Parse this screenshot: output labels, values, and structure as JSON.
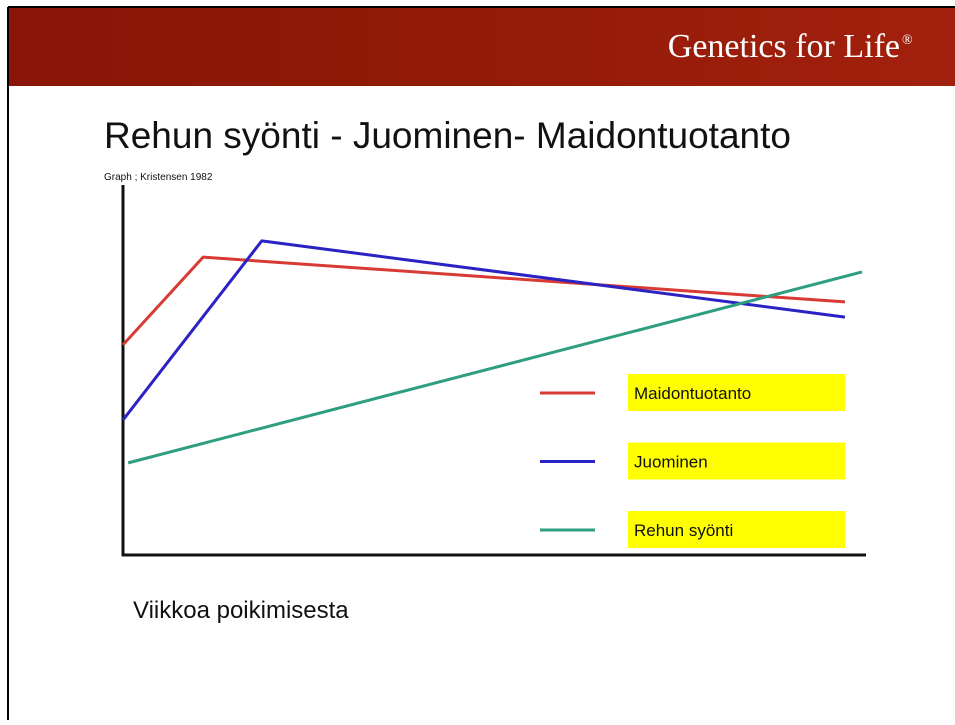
{
  "header": {
    "brand": "Genetics for Life",
    "mark": "®"
  },
  "chart_data": {
    "type": "line",
    "title": "Rehun syönti - Juominen- Maidontuotanto",
    "subtitle": "Graph ; Kristensen 1982",
    "xlabel": "Viikkoa poikimisesta",
    "xlim": [
      0,
      100
    ],
    "ylim": [
      0,
      100
    ],
    "series": [
      {
        "name": "Maidontuotanto",
        "color": "#d83a34",
        "x": [
          0,
          10.8,
          97.3
        ],
        "values": [
          56.8,
          80.5,
          68.4
        ]
      },
      {
        "name": "Juominen",
        "color": "#2b22c4",
        "x": [
          0,
          18.7,
          97.3
        ],
        "values": [
          36.5,
          84.9,
          64.3
        ]
      },
      {
        "name": "Rehun syönti",
        "color": "#2f9e80",
        "x": [
          0.7,
          99.6
        ],
        "values": [
          24.9,
          76.5
        ]
      }
    ]
  }
}
